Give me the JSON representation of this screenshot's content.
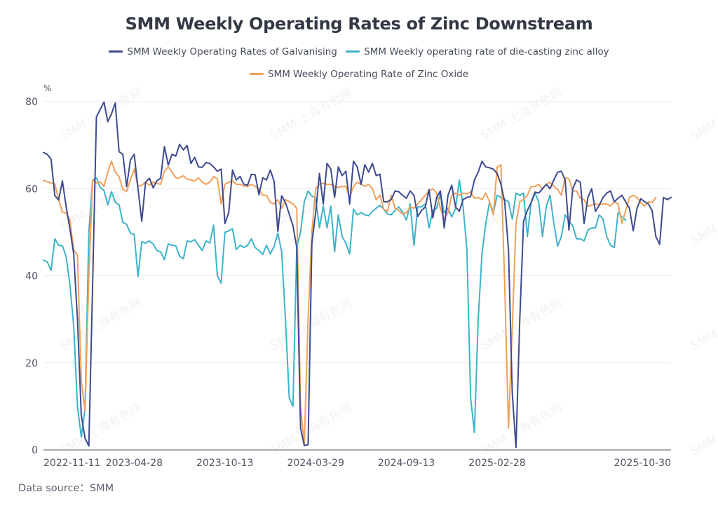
{
  "chart_data": {
    "type": "line",
    "title": "SMM Weekly Operating Rates of Zinc Downstream",
    "ylabel": "%",
    "xlabel": "",
    "ylim": [
      0,
      80
    ],
    "yticks": [
      0,
      20,
      40,
      60,
      80
    ],
    "grid": true,
    "legend_position": "top-center",
    "x_start": "2022-11-11",
    "x_end": "2025-10-30",
    "xtick_labels": [
      "2022-11-11",
      "2023-04-28",
      "2023-10-13",
      "2024-03-29",
      "2024-09-13",
      "2025-02-28",
      "2025-10-30"
    ],
    "xtick_index": [
      0,
      24,
      48,
      72,
      96,
      120,
      154
    ],
    "series": [
      {
        "name": "SMM Weekly Operating Rates of Galvanising",
        "color": "#3d4a8f",
        "values": [
          68.3,
          67.9,
          66.8,
          58.4,
          57.4,
          61.8,
          55.9,
          50.8,
          45.0,
          30.0,
          8.0,
          2.7,
          0.9,
          38.0,
          76.5,
          78.2,
          79.9,
          75.4,
          77.2,
          79.7,
          68.5,
          67.9,
          60.5,
          66.6,
          67.9,
          60.0,
          52.5,
          61.5,
          62.4,
          60.2,
          61.8,
          62.4,
          69.7,
          65.4,
          67.9,
          67.5,
          70.2,
          68.9,
          69.9,
          65.8,
          67.2,
          65.0,
          64.9,
          66.0,
          65.8,
          65.0,
          64.0,
          64.5,
          52.0,
          54.5,
          64.3,
          62.0,
          62.8,
          61.0,
          60.8,
          63.3,
          63.2,
          58.6,
          62.5,
          62.0,
          64.3,
          61.7,
          50.2,
          58.4,
          56.8,
          54.2,
          51.5,
          46.5,
          5.0,
          1.0,
          1.2,
          47.5,
          54.5,
          63.5,
          56.5,
          65.8,
          64.5,
          58.0,
          65.0,
          63.0,
          64.0,
          56.5,
          66.3,
          65.0,
          61.0,
          65.5,
          63.8,
          65.8,
          63.0,
          63.3,
          57.0,
          57.0,
          57.5,
          59.5,
          59.3,
          58.5,
          57.8,
          59.5,
          58.5,
          53.6,
          55.0,
          55.8,
          59.8,
          53.3,
          58.0,
          59.5,
          51.0,
          58.5,
          60.8,
          55.8,
          54.8,
          57.5,
          58.0,
          58.2,
          62.0,
          63.8,
          66.3,
          65.0,
          64.8,
          64.5,
          63.5,
          61.0,
          57.0,
          46.0,
          13.0,
          0.6,
          30.0,
          52.5,
          55.0,
          56.8,
          59.2,
          59.0,
          60.0,
          61.0,
          60.0,
          62.0,
          63.8,
          64.0,
          62.0,
          50.5,
          60.0,
          62.0,
          61.5,
          52.0,
          58.0,
          60.0,
          54.8,
          56.2,
          58.0,
          59.0,
          59.5,
          57.0,
          57.8,
          58.5,
          57.0,
          55.5,
          50.3,
          55.5,
          57.7,
          57.0,
          56.5,
          55.0,
          49.0,
          47.2,
          58.0,
          57.5,
          58.0
        ],
        "_note": ""
      },
      {
        "name": "SMM Weekly operating rate of die-casting zinc alloy",
        "color": "#3db3c9",
        "values": [
          43.6,
          43.2,
          41.2,
          48.5,
          47.0,
          46.9,
          44.4,
          38.0,
          28.5,
          10.0,
          3.0,
          9.5,
          50.0,
          62.0,
          62.5,
          60.3,
          59.6,
          56.3,
          59.3,
          56.9,
          56.3,
          52.3,
          51.8,
          49.8,
          49.5,
          39.8,
          47.8,
          47.5,
          48.0,
          47.3,
          45.8,
          45.5,
          43.7,
          47.3,
          47.0,
          46.9,
          44.5,
          43.9,
          48.0,
          47.8,
          48.3,
          47.0,
          45.8,
          48.0,
          47.5,
          51.6,
          40.0,
          38.3,
          50.0,
          50.3,
          50.8,
          46.0,
          47.0,
          46.5,
          47.0,
          48.5,
          46.5,
          45.8,
          44.9,
          47.0,
          45.0,
          46.8,
          49.8,
          45.5,
          30.0,
          12.0,
          10.0,
          46.5,
          50.0,
          57.0,
          59.5,
          58.3,
          57.8,
          51.0,
          56.0,
          51.0,
          56.0,
          45.5,
          54.0,
          49.0,
          47.5,
          45.0,
          55.3,
          54.0,
          54.5,
          54.0,
          53.8,
          54.8,
          55.5,
          56.2,
          55.3,
          54.2,
          54.0,
          55.0,
          55.8,
          54.6,
          52.8,
          56.5,
          47.0,
          55.8,
          55.8,
          56.5,
          51.0,
          55.0,
          55.5,
          59.0,
          54.5,
          55.5,
          53.5,
          55.5,
          62.0,
          55.8,
          46.0,
          12.0,
          4.0,
          30.0,
          45.0,
          52.0,
          57.0,
          54.5,
          58.5,
          58.0,
          57.5,
          57.0,
          53.0,
          59.0,
          58.5,
          59.0,
          49.0,
          56.8,
          59.0,
          57.0,
          49.0,
          56.0,
          58.5,
          52.0,
          46.8,
          49.0,
          54.0,
          52.5,
          51.5,
          48.5,
          48.5,
          48.0,
          50.5,
          51.0,
          51.0,
          54.0,
          53.0,
          49.0,
          47.0,
          46.5,
          54.5,
          53.5,
          52.8
        ],
        "_note": ""
      },
      {
        "name": "SMM Weekly Operating Rate of Zinc Oxide",
        "color": "#f0a05a",
        "values": [
          61.9,
          61.6,
          61.3,
          61.1,
          57.6,
          54.6,
          54.4,
          52.8,
          46.0,
          44.7,
          16.0,
          9.0,
          40.0,
          62.0,
          61.3,
          61.6,
          60.5,
          63.8,
          66.3,
          63.8,
          62.8,
          59.8,
          59.4,
          62.0,
          64.5,
          60.5,
          60.8,
          61.5,
          60.8,
          61.5,
          61.2,
          61.0,
          64.0,
          65.0,
          63.8,
          62.5,
          62.5,
          63.0,
          62.2,
          62.0,
          61.8,
          62.5,
          61.5,
          61.0,
          61.5,
          62.8,
          62.3,
          56.5,
          61.0,
          61.5,
          61.8,
          61.0,
          61.0,
          60.6,
          60.5,
          61.0,
          60.5,
          60.0,
          58.5,
          58.5,
          56.8,
          56.5,
          57.5,
          55.5,
          57.5,
          57.0,
          56.5,
          55.5,
          10.0,
          1.2,
          30.0,
          50.0,
          60.0,
          61.0,
          61.3,
          61.0,
          61.0,
          60.5,
          60.3,
          60.5,
          60.5,
          58.0,
          60.5,
          61.5,
          61.0,
          60.5,
          61.0,
          60.0,
          57.5,
          58.5,
          55.3,
          54.8,
          58.5,
          55.5,
          55.0,
          54.2,
          54.5,
          55.8,
          55.5,
          56.5,
          57.5,
          58.5,
          59.5,
          60.0,
          59.0,
          55.5,
          53.0,
          54.5,
          58.5,
          59.0,
          58.5,
          59.0,
          58.8,
          59.3,
          57.8,
          58.0,
          57.5,
          59.0,
          57.0,
          54.0,
          65.0,
          65.5,
          38.0,
          5.0,
          28.0,
          52.0,
          57.0,
          57.5,
          58.5,
          60.5,
          60.5,
          61.0,
          60.0,
          61.0,
          61.5,
          60.5,
          59.8,
          58.5,
          62.5,
          62.3,
          59.5,
          59.5,
          57.8,
          57.5,
          56.0,
          56.2,
          56.5,
          56.3,
          56.5,
          56.5,
          56.0,
          57.0,
          56.5,
          52.0,
          55.0,
          58.0,
          58.5,
          58.0,
          56.8,
          56.0,
          57.0,
          56.8,
          58.0
        ]
      }
    ]
  },
  "header": {
    "title": "SMM Weekly Operating Rates of Zinc Downstream"
  },
  "legend": [
    {
      "label": "SMM Weekly Operating Rates of Galvanising",
      "color": "#3d4a8f"
    },
    {
      "label": "SMM Weekly operating rate of die-casting zinc alloy",
      "color": "#3db3c9"
    },
    {
      "label": "SMM Weekly Operating Rate of Zinc Oxide",
      "color": "#f0a05a"
    }
  ],
  "yaxis": {
    "unit": "%"
  },
  "watermark": "SMM 上海有色网",
  "footer": {
    "source": "Data source：SMM"
  }
}
